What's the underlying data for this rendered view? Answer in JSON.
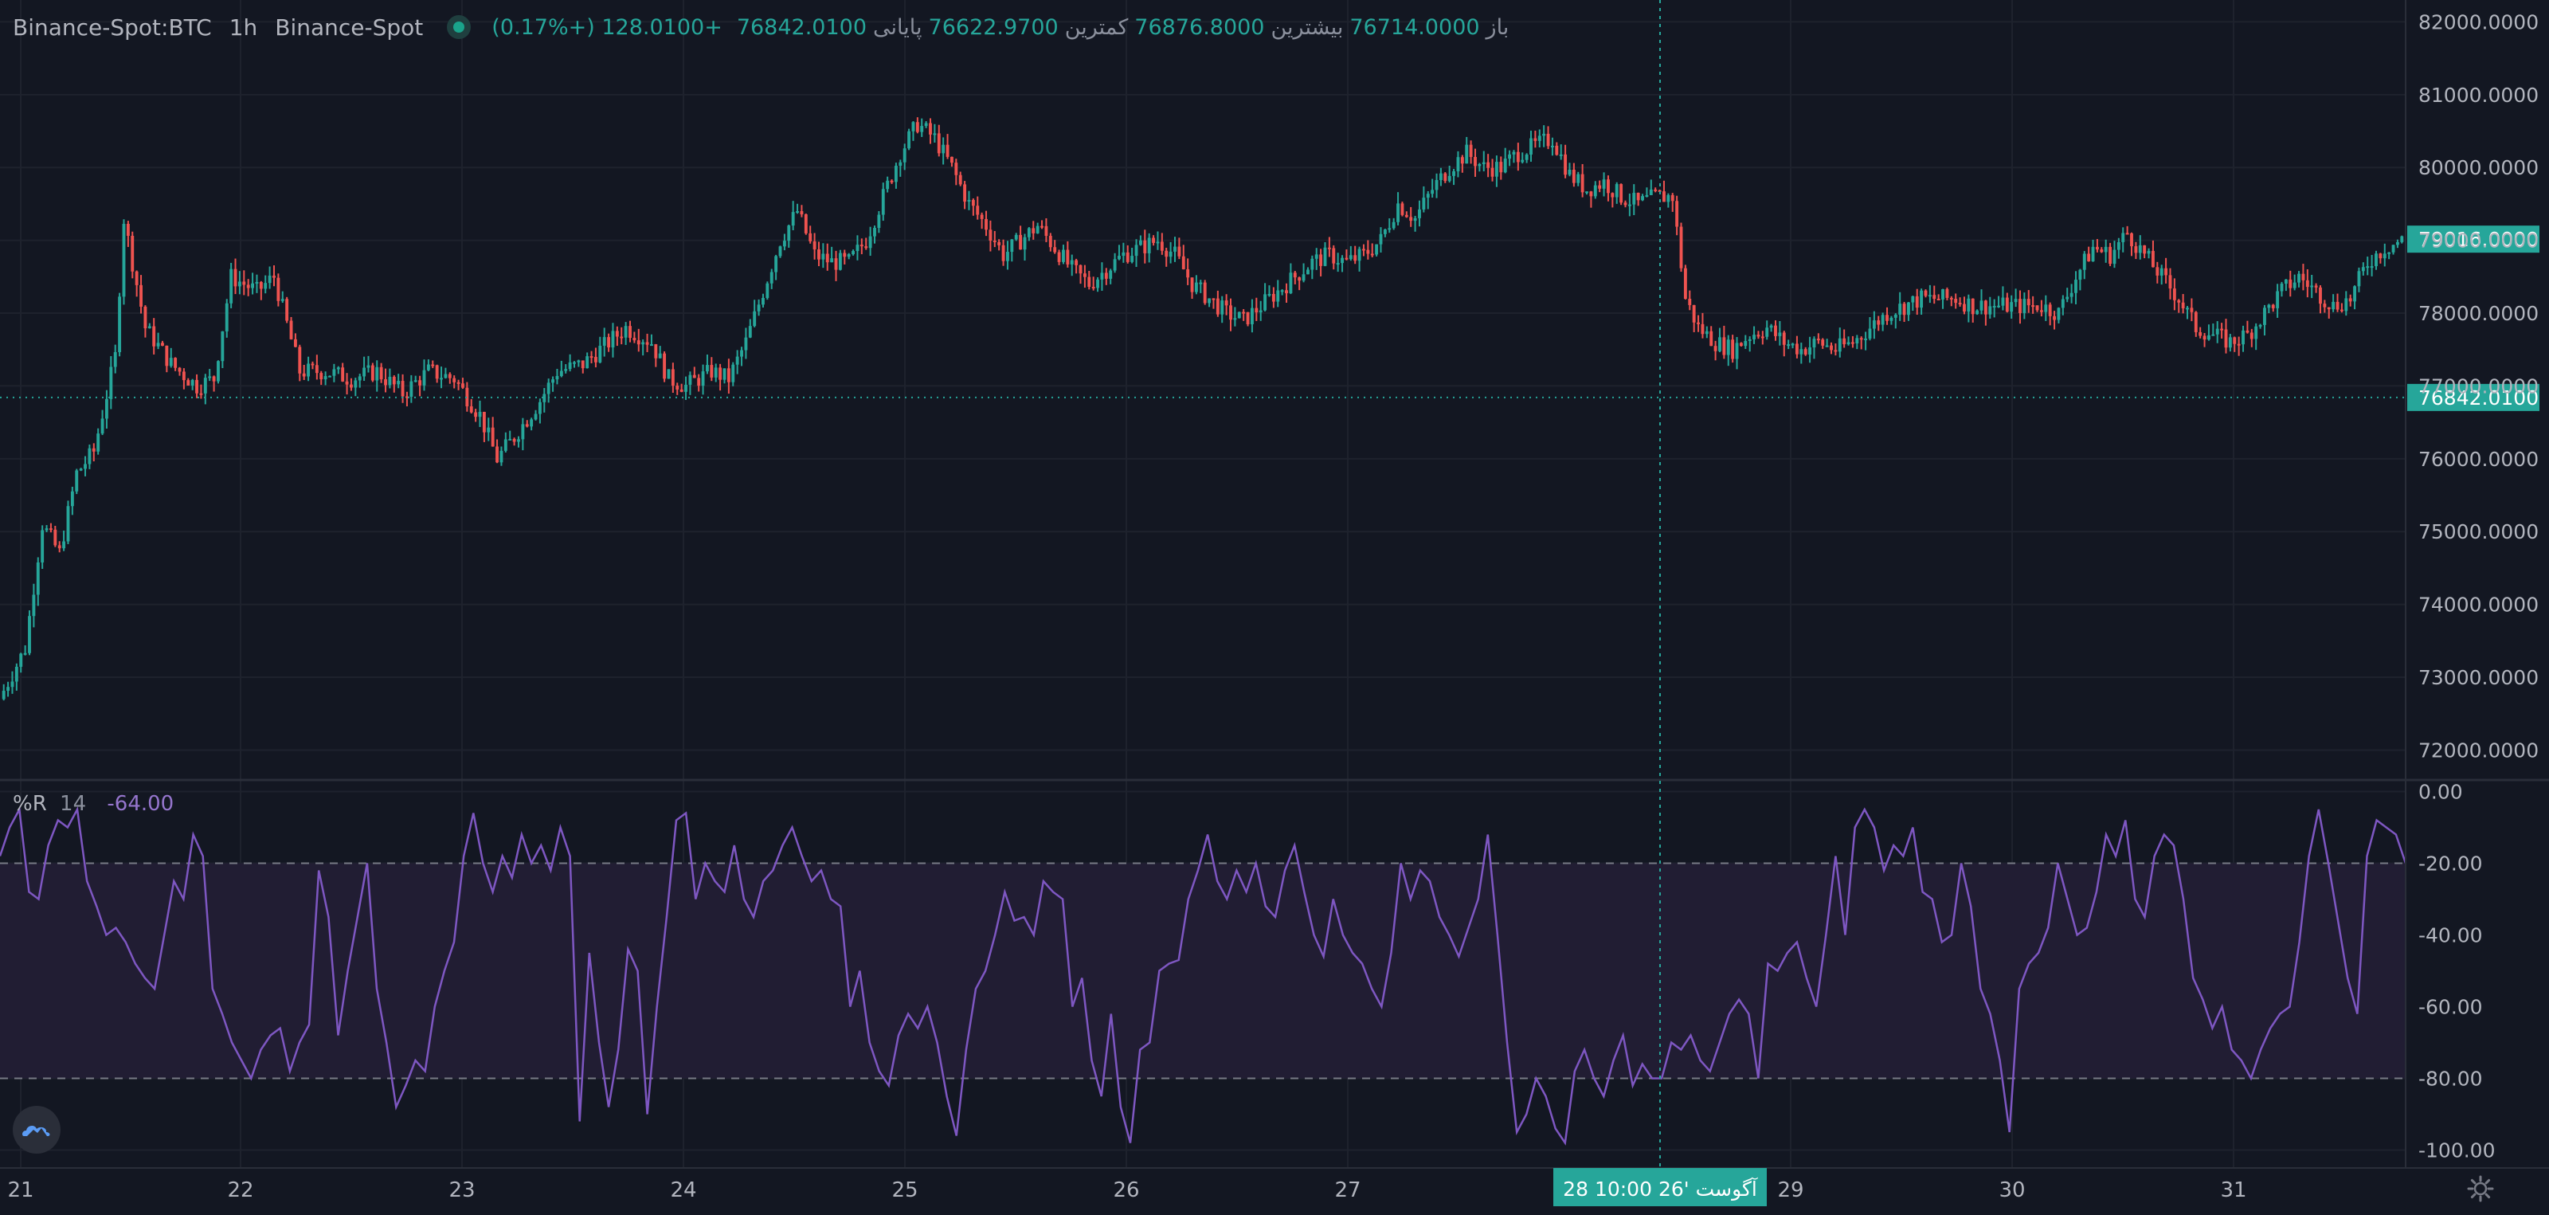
{
  "header": {
    "symbol": "Binance-Spot:BTC",
    "timeframe": "1h",
    "exchange": "Binance-Spot",
    "open_label": "باز",
    "open_value": "76714.0000",
    "high_label": "بیشترین",
    "high_value": "76876.8000",
    "low_label": "کمترین",
    "low_value": "76622.9700",
    "close_label": "پایانی",
    "close_value": "76842.0100",
    "change": "+128.0100 (+0.17%)"
  },
  "indicator": {
    "name": "%R",
    "period": "14",
    "value": "-64.00",
    "upper_band": -20,
    "lower_band": -80
  },
  "crosshair": {
    "label": "28 آگوست '26   10:00"
  },
  "price_labels": {
    "last_price": "79016.0000",
    "crosshair_price": "76842.0100"
  },
  "colors": {
    "background": "#131722",
    "grid": "#1e222d",
    "up": "#26a69a",
    "down": "#ef5350",
    "indicator_line": "#7e57c2",
    "band_fill": "#211d33",
    "crosshair": "#26a69a"
  },
  "icons": {
    "logo": "cloud-mountain-logo-icon",
    "settings": "gear-icon"
  },
  "chart_data": [
    {
      "type": "candlestick",
      "title": "",
      "interval": "1h",
      "x_labels": [
        "21",
        "22",
        "23",
        "24",
        "25",
        "26",
        "27",
        "29",
        "30",
        "31"
      ],
      "y_ticks": [
        "82000.0000",
        "81000.0000",
        "80000.0000",
        "79000.0000",
        "78000.0000",
        "77000.0000",
        "76000.0000",
        "75000.0000",
        "74000.0000",
        "73000.0000",
        "72000.0000"
      ],
      "ylim": [
        71600,
        82300
      ],
      "grid": true,
      "close_path": [
        [
          0,
          72700
        ],
        [
          6,
          73400
        ],
        [
          10,
          75100
        ],
        [
          14,
          74700
        ],
        [
          18,
          75800
        ],
        [
          22,
          76100
        ],
        [
          27,
          77400
        ],
        [
          29,
          79300
        ],
        [
          34,
          77800
        ],
        [
          40,
          77300
        ],
        [
          46,
          77000
        ],
        [
          50,
          77100
        ],
        [
          54,
          78500
        ],
        [
          60,
          78300
        ],
        [
          64,
          78500
        ],
        [
          70,
          77200
        ],
        [
          76,
          77200
        ],
        [
          82,
          77100
        ],
        [
          88,
          77200
        ],
        [
          94,
          76900
        ],
        [
          100,
          77200
        ],
        [
          106,
          77100
        ],
        [
          112,
          76600
        ],
        [
          116,
          76000
        ],
        [
          120,
          76300
        ],
        [
          126,
          76800
        ],
        [
          130,
          77200
        ],
        [
          136,
          77300
        ],
        [
          142,
          77600
        ],
        [
          146,
          77800
        ],
        [
          152,
          77600
        ],
        [
          156,
          77100
        ],
        [
          160,
          77000
        ],
        [
          166,
          77200
        ],
        [
          170,
          77100
        ],
        [
          174,
          77600
        ],
        [
          178,
          78300
        ],
        [
          182,
          79000
        ],
        [
          186,
          79400
        ],
        [
          190,
          78800
        ],
        [
          194,
          78700
        ],
        [
          198,
          78700
        ],
        [
          202,
          79000
        ],
        [
          206,
          79600
        ],
        [
          210,
          80200
        ],
        [
          214,
          80600
        ],
        [
          218,
          80400
        ],
        [
          222,
          80000
        ],
        [
          226,
          79500
        ],
        [
          230,
          79200
        ],
        [
          234,
          78800
        ],
        [
          238,
          79000
        ],
        [
          242,
          79200
        ],
        [
          246,
          78900
        ],
        [
          250,
          78600
        ],
        [
          254,
          78400
        ],
        [
          258,
          78600
        ],
        [
          262,
          78800
        ],
        [
          266,
          78900
        ],
        [
          270,
          79000
        ],
        [
          274,
          78800
        ],
        [
          278,
          78400
        ],
        [
          282,
          78200
        ],
        [
          286,
          78000
        ],
        [
          290,
          77900
        ],
        [
          294,
          78100
        ],
        [
          298,
          78300
        ],
        [
          302,
          78500
        ],
        [
          306,
          78700
        ],
        [
          310,
          78800
        ],
        [
          314,
          78700
        ],
        [
          318,
          78800
        ],
        [
          322,
          79000
        ],
        [
          326,
          79500
        ],
        [
          330,
          79300
        ],
        [
          334,
          79700
        ],
        [
          338,
          80000
        ],
        [
          342,
          80200
        ],
        [
          346,
          80000
        ],
        [
          350,
          80000
        ],
        [
          354,
          80200
        ],
        [
          358,
          80300
        ],
        [
          362,
          80400
        ],
        [
          366,
          79900
        ],
        [
          370,
          79700
        ],
        [
          374,
          79800
        ],
        [
          378,
          79600
        ],
        [
          382,
          79500
        ],
        [
          386,
          79600
        ],
        [
          390,
          79600
        ],
        [
          393,
          78200
        ],
        [
          396,
          77800
        ],
        [
          400,
          77600
        ],
        [
          404,
          77500
        ],
        [
          408,
          77700
        ],
        [
          412,
          77800
        ],
        [
          416,
          77600
        ],
        [
          420,
          77500
        ],
        [
          424,
          77600
        ],
        [
          428,
          77500
        ],
        [
          432,
          77600
        ],
        [
          436,
          77800
        ],
        [
          440,
          78000
        ],
        [
          444,
          78100
        ],
        [
          448,
          78200
        ],
        [
          452,
          78200
        ],
        [
          456,
          78200
        ],
        [
          460,
          78100
        ],
        [
          464,
          78100
        ],
        [
          468,
          78100
        ],
        [
          472,
          78100
        ],
        [
          476,
          78100
        ],
        [
          480,
          78000
        ],
        [
          484,
          78500
        ],
        [
          488,
          78900
        ],
        [
          492,
          78800
        ],
        [
          496,
          79100
        ],
        [
          500,
          78800
        ],
        [
          504,
          78500
        ],
        [
          508,
          78200
        ],
        [
          512,
          77800
        ],
        [
          516,
          77700
        ],
        [
          520,
          77600
        ],
        [
          524,
          77700
        ],
        [
          528,
          78000
        ],
        [
          532,
          78300
        ],
        [
          536,
          78500
        ],
        [
          540,
          78300
        ],
        [
          544,
          78100
        ],
        [
          548,
          78200
        ],
        [
          552,
          78700
        ],
        [
          556,
          78900
        ],
        [
          560,
          79000
        ]
      ],
      "series": [
        {
          "name": "Binance-Spot:BTC",
          "last": 79016.0,
          "crosshair": 76842.01
        }
      ]
    },
    {
      "type": "line",
      "title": "",
      "series": [
        {
          "name": "%R"
        }
      ],
      "y_ticks": [
        "0.00",
        "-20.00",
        "-40.00",
        "-60.00",
        "-80.00",
        "-100.00"
      ],
      "ylim": [
        -105,
        3
      ],
      "bands": [
        -20,
        -80
      ],
      "values": [
        -18,
        -10,
        -5,
        -28,
        -30,
        -15,
        -8,
        -10,
        -5,
        -25,
        -32,
        -40,
        -38,
        -42,
        -48,
        -52,
        -55,
        -40,
        -25,
        -30,
        -12,
        -18,
        -55,
        -62,
        -70,
        -75,
        -80,
        -72,
        -68,
        -66,
        -78,
        -70,
        -65,
        -22,
        -35,
        -68,
        -50,
        -35,
        -20,
        -55,
        -70,
        -88,
        -82,
        -75,
        -78,
        -60,
        -50,
        -42,
        -18,
        -6,
        -20,
        -28,
        -18,
        -24,
        -12,
        -20,
        -15,
        -22,
        -10,
        -18,
        -92,
        -45,
        -70,
        -88,
        -72,
        -44,
        -50,
        -90,
        -60,
        -35,
        -8,
        -6,
        -30,
        -20,
        -25,
        -28,
        -15,
        -30,
        -35,
        -25,
        -22,
        -15,
        -10,
        -18,
        -25,
        -22,
        -30,
        -32,
        -60,
        -50,
        -70,
        -78,
        -82,
        -68,
        -62,
        -66,
        -60,
        -70,
        -85,
        -96,
        -72,
        -55,
        -50,
        -40,
        -28,
        -36,
        -35,
        -40,
        -25,
        -28,
        -30,
        -60,
        -52,
        -75,
        -85,
        -62,
        -88,
        -98,
        -72,
        -70,
        -50,
        -48,
        -47,
        -30,
        -22,
        -12,
        -25,
        -30,
        -22,
        -28,
        -20,
        -32,
        -35,
        -22,
        -15,
        -28,
        -40,
        -46,
        -30,
        -40,
        -45,
        -48,
        -55,
        -60,
        -45,
        -20,
        -30,
        -22,
        -25,
        -35,
        -40,
        -46,
        -38,
        -30,
        -12,
        -40,
        -70,
        -95,
        -90,
        -80,
        -85,
        -94,
        -98,
        -78,
        -72,
        -80,
        -85,
        -75,
        -68,
        -82,
        -76,
        -80,
        -80,
        -70,
        -72,
        -68,
        -75,
        -78,
        -70,
        -62,
        -58,
        -62,
        -80,
        -48,
        -50,
        -45,
        -42,
        -52,
        -60,
        -40,
        -18,
        -40,
        -10,
        -5,
        -10,
        -22,
        -15,
        -18,
        -10,
        -28,
        -30,
        -42,
        -40,
        -20,
        -32,
        -55,
        -62,
        -75,
        -95,
        -55,
        -48,
        -45,
        -38,
        -20,
        -30,
        -40,
        -38,
        -28,
        -12,
        -18,
        -8,
        -30,
        -35,
        -18,
        -12,
        -15,
        -30,
        -52,
        -58,
        -66,
        -60,
        -72,
        -75,
        -80,
        -72,
        -66,
        -62,
        -60,
        -42,
        -18,
        -5,
        -20,
        -36,
        -52,
        -62,
        -18,
        -8,
        -10,
        -12,
        -20
      ]
    }
  ]
}
